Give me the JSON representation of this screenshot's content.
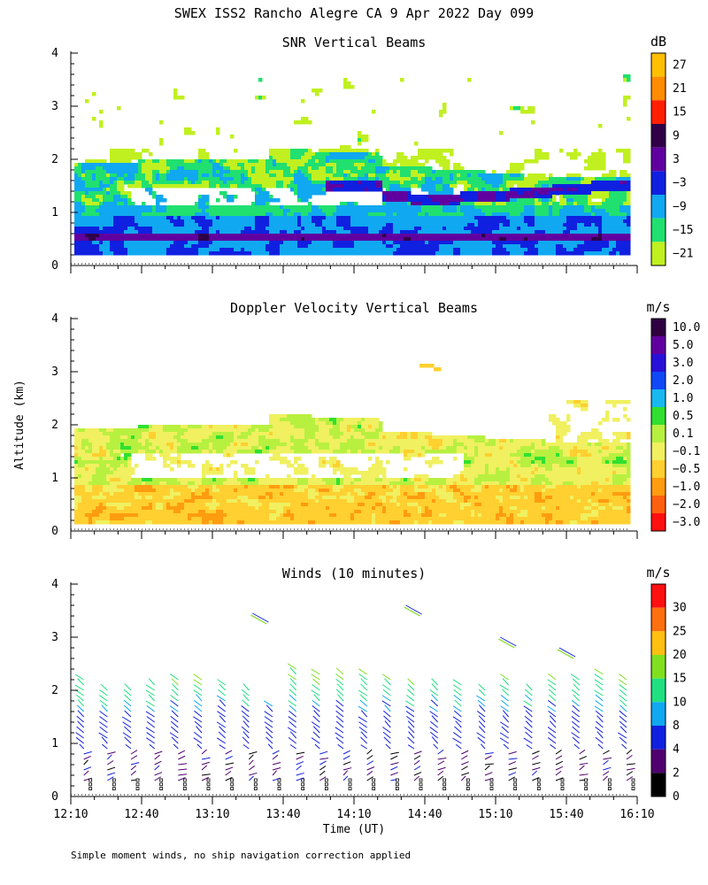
{
  "figure": {
    "title": "SWEX ISS2 Rancho Alegre CA   9 Apr 2022 Day 099",
    "footnote": "Simple moment winds, no ship navigation correction applied",
    "shared_ylabel": "Altitude (km)",
    "shared_xlabel": "Time (UT)"
  },
  "chart_data": [
    {
      "type": "heatmap",
      "title": "SNR Vertical Beams",
      "ylabel": "Altitude (km)",
      "ylim": [
        0,
        4
      ],
      "yticks": [
        "0",
        "1",
        "2",
        "3",
        "4"
      ],
      "x_range": [
        "12:10",
        "16:10"
      ],
      "colorbar": {
        "unit": "dB",
        "labels": [
          "27",
          "21",
          "15",
          "9",
          "3",
          "−3",
          "−9",
          "−15",
          "−21"
        ],
        "colors": [
          "#ffc000",
          "#ff8c00",
          "#ff2000",
          "#300048",
          "#6000a0",
          "#1020e0",
          "#10a8f0",
          "#20e070",
          "#c0f020"
        ]
      },
      "features": [
        {
          "layer": "strong low-level layer",
          "altitude_km": [
            0.45,
            0.6
          ],
          "snr_db": [
            3,
            9
          ]
        },
        {
          "layer": "boundary layer echo",
          "altitude_km": [
            0.2,
            1.9
          ],
          "snr_db": [
            -21,
            -3
          ]
        },
        {
          "layer": "inversion layer",
          "altitude_km": [
            1.3,
            1.85
          ],
          "snr_db": [
            -3,
            9
          ]
        },
        {
          "layer": "upper scattered echo",
          "altitude_km": [
            2.0,
            3.6
          ],
          "snr_db": [
            -21,
            -15
          ]
        }
      ]
    },
    {
      "type": "heatmap",
      "title": "Doppler Velocity Vertical Beams",
      "ylabel": "Altitude (km)",
      "ylim": [
        0,
        4
      ],
      "yticks": [
        "0",
        "1",
        "2",
        "3",
        "4"
      ],
      "x_range": [
        "12:10",
        "16:10"
      ],
      "colorbar": {
        "unit": "m/s",
        "labels": [
          "10.0",
          "5.0",
          "3.0",
          "2.0",
          "1.0",
          "0.5",
          "0.1",
          "−0.1",
          "−0.5",
          "−1.0",
          "−2.0",
          "−3.0"
        ],
        "colors": [
          "#300040",
          "#6000a0",
          "#2810d8",
          "#1048f8",
          "#18b8f0",
          "#30e030",
          "#b8f040",
          "#f0f060",
          "#ffd030",
          "#ff9c10",
          "#ff6010",
          "#ff1010"
        ]
      },
      "features": [
        {
          "region": "lower layer",
          "altitude_km": [
            0.1,
            0.9
          ],
          "velocity_ms": [
            -1.0,
            -0.1
          ]
        },
        {
          "region": "upper layer",
          "altitude_km": [
            1.1,
            2.1
          ],
          "velocity_ms": [
            -0.1,
            0.5
          ]
        }
      ]
    },
    {
      "type": "scatter",
      "title": "Winds (10 minutes)",
      "ylabel": "Altitude (km)",
      "xlabel": "Time (UT)",
      "ylim": [
        0,
        4
      ],
      "yticks": [
        "0",
        "1",
        "2",
        "3",
        "4"
      ],
      "xticks": [
        "12:10",
        "12:40",
        "13:10",
        "13:40",
        "14:10",
        "14:40",
        "15:10",
        "15:40",
        "16:10"
      ],
      "colorbar": {
        "unit": "m/s",
        "labels": [
          "30",
          "25",
          "20",
          "15",
          "10",
          "8",
          "4",
          "2",
          "0"
        ],
        "colors": [
          "#ff1010",
          "#ff7010",
          "#ffc010",
          "#80e020",
          "#20e080",
          "#10a8f0",
          "#1020e0",
          "#500070",
          "#000000"
        ]
      },
      "profiles_per_hour": 6,
      "max_altitude_km": [
        2.3,
        2.1,
        2.1,
        2.2,
        2.3,
        2.3,
        2.2,
        2.1,
        1.8,
        2.5,
        2.4,
        2.4,
        2.4,
        2.3,
        2.2,
        2.2,
        2.2,
        2.1,
        2.3,
        2.1,
        2.3,
        2.3,
        2.4,
        2.3
      ],
      "isolated_upper_vectors": [
        {
          "time": "13:30",
          "altitude_km": 3.35
        },
        {
          "time": "14:35",
          "altitude_km": 3.5
        },
        {
          "time": "15:15",
          "altitude_km": 2.9
        },
        {
          "time": "15:40",
          "altitude_km": 2.7
        }
      ]
    }
  ]
}
